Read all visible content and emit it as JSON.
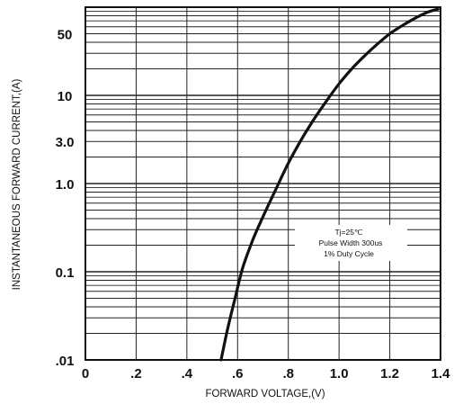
{
  "chart_data": {
    "type": "line",
    "title": "",
    "xlabel": "FORWARD VOLTAGE,(V)",
    "ylabel": "INSTANTANEOUS FORWARD CURRENT,(A)",
    "xlim": [
      0,
      1.4
    ],
    "ylim": [
      0.01,
      100
    ],
    "yscale": "log",
    "grid": true,
    "x_ticks": [
      {
        "value": 0,
        "label": "0"
      },
      {
        "value": 0.2,
        "label": ".2"
      },
      {
        "value": 0.4,
        "label": ".4"
      },
      {
        "value": 0.6,
        "label": ".6"
      },
      {
        "value": 0.8,
        "label": ".8"
      },
      {
        "value": 1.0,
        "label": "1.0"
      },
      {
        "value": 1.2,
        "label": "1.2"
      },
      {
        "value": 1.4,
        "label": "1.4"
      }
    ],
    "y_ticks": [
      {
        "value": 50,
        "label": "50"
      },
      {
        "value": 10,
        "label": "10"
      },
      {
        "value": 3,
        "label": "3.0"
      },
      {
        "value": 1,
        "label": "1.0"
      },
      {
        "value": 0.1,
        "label": "0.1"
      },
      {
        "value": 0.01,
        "label": ".01"
      }
    ],
    "series": [
      {
        "color": "#111111",
        "x": [
          0.535,
          0.56,
          0.59,
          0.62,
          0.66,
          0.7,
          0.75,
          0.8,
          0.85,
          0.9,
          0.95,
          1.0,
          1.05,
          1.1,
          1.15,
          1.2,
          1.25,
          1.3,
          1.35,
          1.39
        ],
        "y": [
          0.01,
          0.022,
          0.05,
          0.11,
          0.23,
          0.42,
          0.85,
          1.7,
          3.1,
          5.3,
          8.6,
          13.5,
          20,
          28,
          38,
          50,
          62,
          75,
          88,
          95
        ]
      }
    ],
    "annotations": [
      "Tj=25℃",
      "Pulse Width 300us",
      "1% Duty Cycle"
    ]
  }
}
